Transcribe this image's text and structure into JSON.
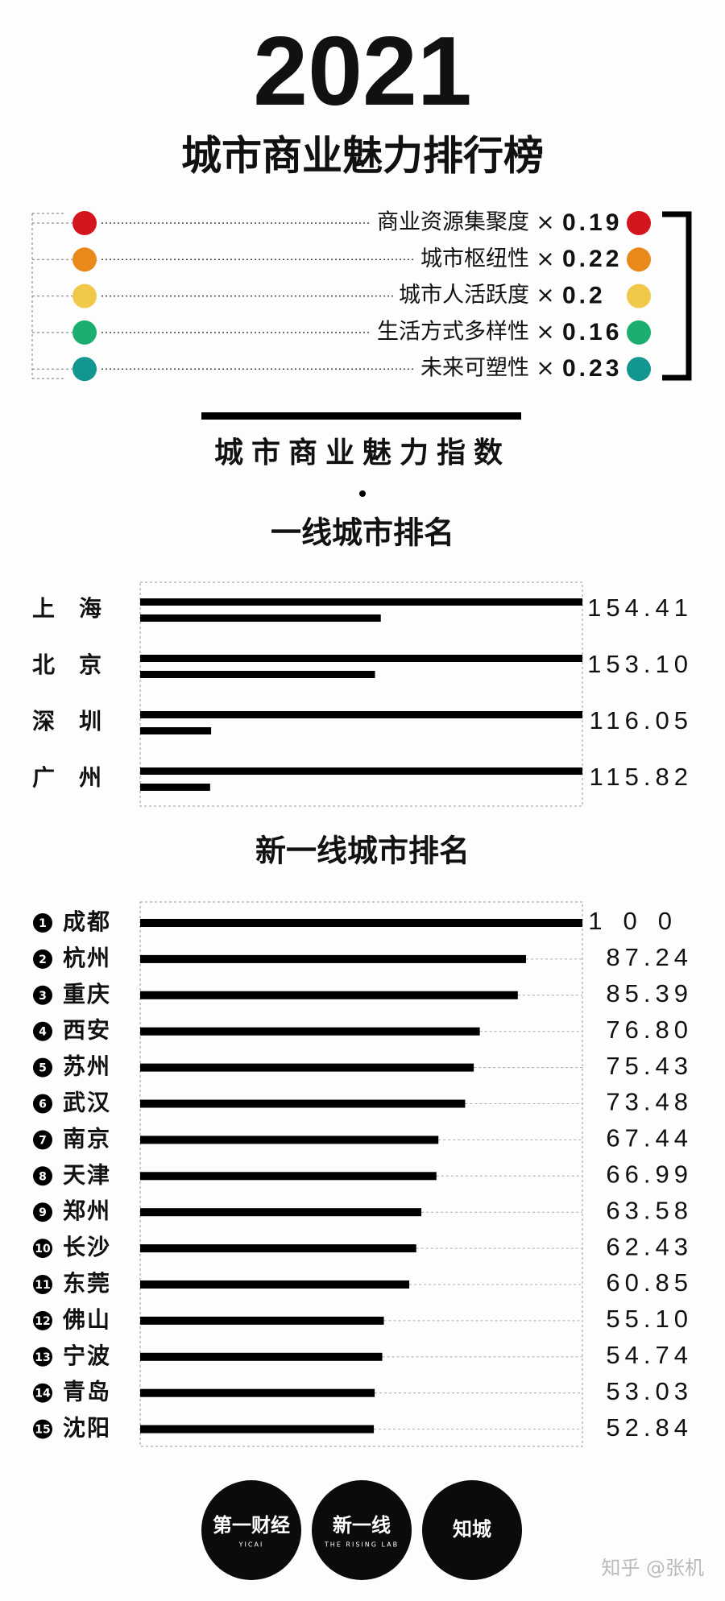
{
  "header": {
    "year": "2021",
    "title": "城市商业魅力排行榜"
  },
  "weights": {
    "multiplier": "×",
    "items": [
      {
        "name": "商业资源集聚度",
        "weight": 0.19,
        "color": "#d3161d"
      },
      {
        "name": "城市枢纽性",
        "weight": 0.22,
        "color": "#e8891a"
      },
      {
        "name": "城市人活跃度",
        "weight": 0.2,
        "color": "#f0c84a"
      },
      {
        "name": "生活方式多样性",
        "weight": 0.16,
        "color": "#1aae6f"
      },
      {
        "name": "未来可塑性",
        "weight": 0.23,
        "color": "#13968f"
      }
    ]
  },
  "index_heading": "城市商业魅力指数",
  "chart_data": [
    {
      "type": "bar",
      "title": "一线城市排名",
      "wrap": true,
      "color": "#000000",
      "xlim": [
        0,
        100
      ],
      "categories": [
        "上海",
        "北京",
        "深圳",
        "广州"
      ],
      "values": [
        154.41,
        153.1,
        116.05,
        115.82
      ],
      "value_labels": [
        "154.41",
        "153.10",
        "116.05",
        "115.82"
      ]
    },
    {
      "type": "bar",
      "title": "新一线城市排名",
      "color": "#000000",
      "xlim": [
        0,
        100
      ],
      "ranks": [
        1,
        2,
        3,
        4,
        5,
        6,
        7,
        8,
        9,
        10,
        11,
        12,
        13,
        14,
        15
      ],
      "categories": [
        "成都",
        "杭州",
        "重庆",
        "西安",
        "苏州",
        "武汉",
        "南京",
        "天津",
        "郑州",
        "长沙",
        "东莞",
        "佛山",
        "宁波",
        "青岛",
        "沈阳"
      ],
      "values": [
        100,
        87.24,
        85.39,
        76.8,
        75.43,
        73.48,
        67.44,
        66.99,
        63.58,
        62.43,
        60.85,
        55.1,
        54.74,
        53.03,
        52.84
      ],
      "value_labels": [
        "100",
        "87.24",
        "85.39",
        "76.80",
        "75.43",
        "73.48",
        "67.44",
        "66.99",
        "63.58",
        "62.43",
        "60.85",
        "55.10",
        "54.74",
        "53.03",
        "52.84"
      ]
    }
  ],
  "logos": [
    {
      "name": "第一财经",
      "sub": "YICAI"
    },
    {
      "name": "新一线",
      "sub": "THE RISING LAB"
    },
    {
      "name": "知城"
    }
  ],
  "watermark": "知乎 @张机"
}
